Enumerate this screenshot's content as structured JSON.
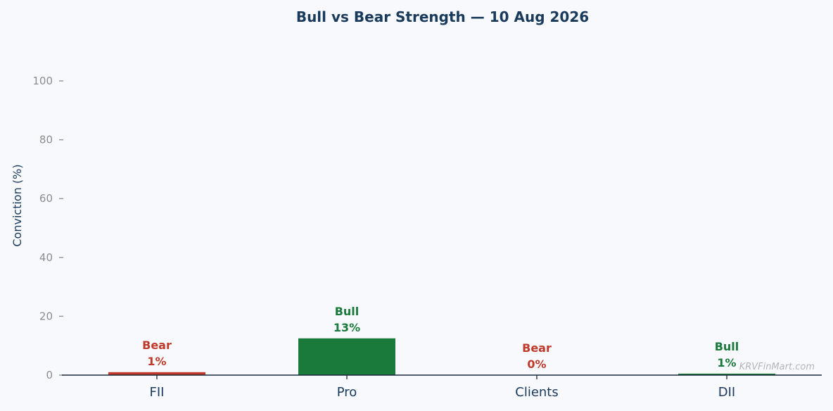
{
  "chart_data": {
    "type": "bar",
    "title": "Bull vs Bear Strength — 10 Aug 2026",
    "xlabel": "",
    "ylabel": "Conviction (%)",
    "ylim": [
      0,
      110
    ],
    "yticks": [
      0,
      20,
      40,
      60,
      80,
      100
    ],
    "categories": [
      "FII",
      "Pro",
      "Clients",
      "DII"
    ],
    "values": [
      1,
      12.5,
      0,
      0.5
    ],
    "sentiment": [
      "Bear",
      "Bull",
      "Bear",
      "Bull"
    ],
    "value_labels": [
      "1%",
      "13%",
      "0%",
      "1%"
    ],
    "grid": false,
    "legend": "none"
  },
  "colors": {
    "bull": "#1a7a3c",
    "bear": "#c0392b",
    "bull_label": "#1a7a3c",
    "bear_label": "#c0392b",
    "axis": "#1a2a3a",
    "background": "#f7f9fc"
  },
  "watermark": "KRVFinMart.com"
}
